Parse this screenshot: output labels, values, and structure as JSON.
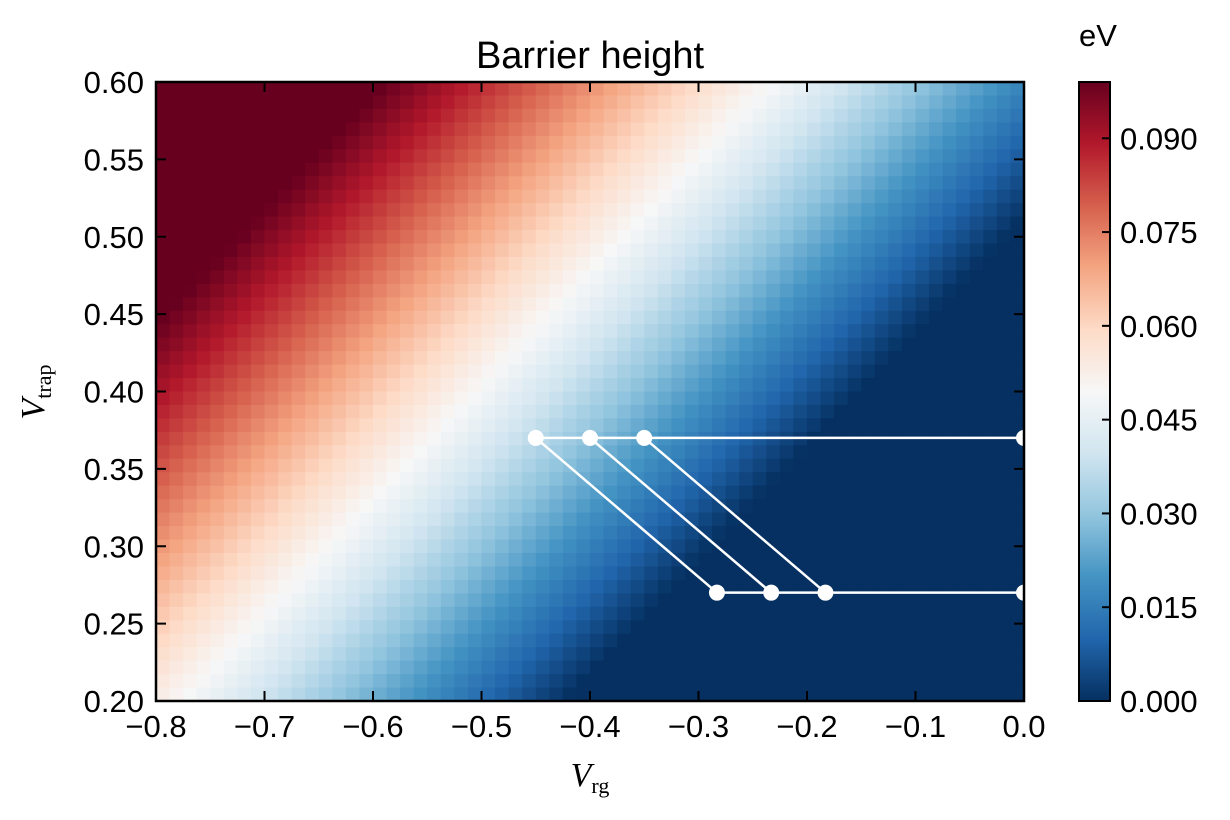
{
  "chart_data": {
    "type": "heatmap",
    "title": "Barrier height",
    "xlabel": {
      "symbol": "V",
      "subscript": "rg"
    },
    "ylabel": {
      "symbol": "V",
      "subscript": "trap"
    },
    "xlim": [
      -0.8,
      0.0
    ],
    "ylim": [
      0.2,
      0.6
    ],
    "xticks": [
      -0.8,
      -0.7,
      -0.6,
      -0.5,
      -0.4,
      -0.3,
      -0.2,
      -0.1,
      0.0
    ],
    "xtick_labels": [
      "−0.8",
      "−0.7",
      "−0.6",
      "−0.5",
      "−0.4",
      "−0.3",
      "−0.2",
      "−0.1",
      "0.0"
    ],
    "yticks": [
      0.2,
      0.25,
      0.3,
      0.35,
      0.4,
      0.45,
      0.5,
      0.55,
      0.6
    ],
    "ytick_labels": [
      "0.20",
      "0.25",
      "0.30",
      "0.35",
      "0.40",
      "0.45",
      "0.50",
      "0.55",
      "0.60"
    ],
    "colormap": "RdBu_r",
    "grid": false,
    "field": {
      "model": "barrier = clip(0.048 + 0.19*(V_trap - 0.3) - 0.14*(V_rg + 0.63), 0, 0.099)",
      "value_range": [
        0.0,
        0.099
      ],
      "nx": 64,
      "ny": 46
    },
    "colorbar": {
      "unit": "eV",
      "range": [
        0.0,
        0.099
      ],
      "ticks": [
        0.0,
        0.015,
        0.03,
        0.045,
        0.06,
        0.075,
        0.09
      ],
      "tick_labels": [
        "0.000",
        "0.015",
        "0.030",
        "0.045",
        "0.060",
        "0.075",
        "0.090"
      ]
    },
    "overlay": {
      "color": "#ffffff",
      "segments": [
        {
          "x": [
            -0.45,
            0.0
          ],
          "y": [
            0.37,
            0.37
          ]
        },
        {
          "x": [
            -0.283,
            0.0
          ],
          "y": [
            0.27,
            0.27
          ]
        },
        {
          "x": [
            -0.45,
            -0.283
          ],
          "y": [
            0.37,
            0.27
          ]
        },
        {
          "x": [
            -0.4,
            -0.233
          ],
          "y": [
            0.37,
            0.27
          ]
        },
        {
          "x": [
            -0.35,
            -0.183
          ],
          "y": [
            0.37,
            0.27
          ]
        }
      ],
      "points": [
        {
          "x": -0.45,
          "y": 0.37
        },
        {
          "x": -0.4,
          "y": 0.37
        },
        {
          "x": -0.35,
          "y": 0.37
        },
        {
          "x": 0.0,
          "y": 0.37
        },
        {
          "x": -0.283,
          "y": 0.27
        },
        {
          "x": -0.233,
          "y": 0.27
        },
        {
          "x": -0.183,
          "y": 0.27
        },
        {
          "x": 0.0,
          "y": 0.27
        }
      ]
    }
  }
}
